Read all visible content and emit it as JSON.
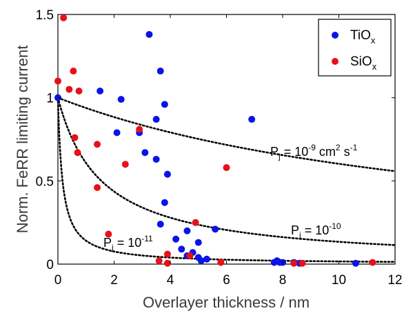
{
  "chart_data": {
    "type": "scatter",
    "xlabel": "Overlayer thickness / nm",
    "ylabel": "Norm. FeRR limiting current",
    "xlim": [
      0,
      12
    ],
    "ylim": [
      0,
      1.5
    ],
    "xticks": [
      "0",
      "2",
      "4",
      "6",
      "8",
      "10",
      "12"
    ],
    "yticks": [
      "0",
      "0.5",
      "1",
      "1.5"
    ],
    "legend_position": "top-right",
    "series": [
      {
        "name": "TiOx",
        "legend_base": "TiO",
        "legend_sub": "x",
        "color": "#0a14e6",
        "points": [
          [
            0.0,
            1.0
          ],
          [
            1.5,
            1.04
          ],
          [
            2.1,
            0.79
          ],
          [
            2.25,
            0.99
          ],
          [
            2.9,
            0.79
          ],
          [
            3.1,
            0.67
          ],
          [
            3.25,
            1.38
          ],
          [
            3.5,
            0.87
          ],
          [
            3.5,
            0.63
          ],
          [
            3.65,
            1.16
          ],
          [
            3.65,
            0.24
          ],
          [
            3.8,
            0.96
          ],
          [
            3.8,
            0.37
          ],
          [
            3.9,
            0.54
          ],
          [
            4.2,
            0.15
          ],
          [
            4.4,
            0.09
          ],
          [
            4.6,
            0.2
          ],
          [
            4.6,
            0.05
          ],
          [
            4.8,
            0.07
          ],
          [
            5.0,
            0.13
          ],
          [
            5.0,
            0.04
          ],
          [
            5.1,
            0.02
          ],
          [
            5.3,
            0.03
          ],
          [
            5.6,
            0.21
          ],
          [
            6.9,
            0.87
          ],
          [
            7.7,
            0.01
          ],
          [
            7.8,
            0.02
          ],
          [
            7.9,
            0.01
          ],
          [
            8.0,
            0.01
          ],
          [
            8.4,
            0.01
          ],
          [
            8.6,
            0.005
          ],
          [
            10.6,
            0.005
          ]
        ]
      },
      {
        "name": "SiOx",
        "legend_base": "SiO",
        "legend_sub": "x",
        "color": "#e8101a",
        "points": [
          [
            0.0,
            1.1
          ],
          [
            0.2,
            1.48
          ],
          [
            0.4,
            1.05
          ],
          [
            0.55,
            1.16
          ],
          [
            0.6,
            0.76
          ],
          [
            0.7,
            0.67
          ],
          [
            0.75,
            1.04
          ],
          [
            1.4,
            0.72
          ],
          [
            1.4,
            0.46
          ],
          [
            1.8,
            0.18
          ],
          [
            2.4,
            0.6
          ],
          [
            2.9,
            0.81
          ],
          [
            3.6,
            0.02
          ],
          [
            3.9,
            0.06
          ],
          [
            3.9,
            0.005
          ],
          [
            4.7,
            0.05
          ],
          [
            4.9,
            0.25
          ],
          [
            5.8,
            0.01
          ],
          [
            6.0,
            0.58
          ],
          [
            8.4,
            0.005
          ],
          [
            8.7,
            0.005
          ],
          [
            11.2,
            0.01
          ]
        ]
      }
    ],
    "curves": [
      {
        "Pj": 1e-09,
        "k": 0.0659
      },
      {
        "Pj": 1e-10,
        "k": 0.646
      },
      {
        "Pj": 1e-11,
        "k": 6.1
      }
    ],
    "annotations": [
      {
        "base": "P",
        "sub": "j",
        "mid": " = 10",
        "exp": "-9",
        "tail": " cm",
        "tail_exp": "2",
        "tail2": " s",
        "tail2_exp": "-1"
      },
      {
        "base": "P",
        "sub": "j",
        "mid": " = 10",
        "exp": "-10",
        "tail": "",
        "tail_exp": "",
        "tail2": "",
        "tail2_exp": ""
      },
      {
        "base": "P",
        "sub": "j",
        "mid": " = 10",
        "exp": "-11",
        "tail": "",
        "tail_exp": "",
        "tail2": "",
        "tail2_exp": ""
      }
    ]
  }
}
